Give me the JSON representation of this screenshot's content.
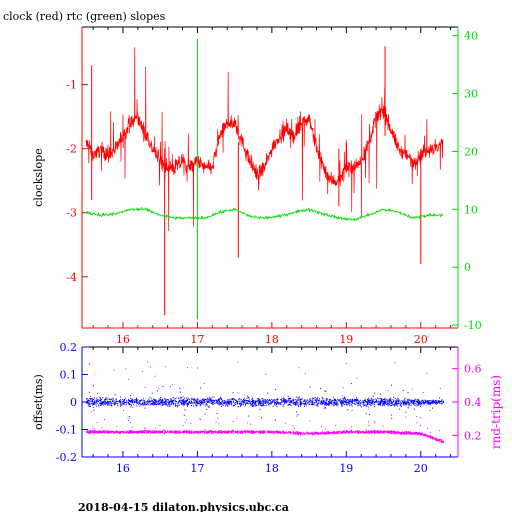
{
  "footer": "2018-04-15  dilaton.physics.ubc.ca",
  "colors": {
    "clock": "#ff0000",
    "rtc": "#00dd00",
    "offset": "#0000ff",
    "rnd_trip": "#ff00ff",
    "axis": "#000000"
  },
  "chart_data": [
    {
      "type": "line",
      "title": "clock (red) rtc (green) slopes",
      "ylabel": "clockslope",
      "y2label": "",
      "xlim": [
        15.45,
        20.5
      ],
      "ylim": [
        -4.8,
        -0.1
      ],
      "y2lim": [
        -10.5,
        41.5
      ],
      "x_ticks": [
        16,
        17,
        18,
        19,
        20
      ],
      "y_ticks": [
        -1,
        -2,
        -3,
        -4
      ],
      "y2_ticks": [
        40,
        30,
        20,
        10,
        0,
        -10
      ],
      "grid": false,
      "series": [
        {
          "axis": "left",
          "x": [
            15.5,
            15.6,
            15.7,
            15.8,
            15.9,
            16.0,
            16.1,
            16.2,
            16.3,
            16.4,
            16.5,
            16.6,
            16.7,
            16.8,
            16.9,
            17.0,
            17.1,
            17.2,
            17.3,
            17.4,
            17.5,
            17.6,
            17.7,
            17.8,
            17.9,
            18.0,
            18.1,
            18.2,
            18.3,
            18.4,
            18.5,
            18.6,
            18.7,
            18.8,
            18.9,
            19.0,
            19.1,
            19.2,
            19.3,
            19.4,
            19.5,
            19.6,
            19.7,
            19.8,
            19.9,
            20.0,
            20.1,
            20.2,
            20.3
          ],
          "values": [
            -1.9,
            -2.1,
            -2.0,
            -2.1,
            -2.0,
            -1.8,
            -1.6,
            -1.5,
            -1.8,
            -2.0,
            -2.2,
            -2.3,
            -2.3,
            -2.2,
            -2.3,
            -2.2,
            -2.3,
            -2.3,
            -1.8,
            -1.6,
            -1.6,
            -1.9,
            -2.2,
            -2.4,
            -2.3,
            -2.0,
            -1.8,
            -1.7,
            -1.8,
            -1.6,
            -1.5,
            -2.0,
            -2.3,
            -2.5,
            -2.5,
            -2.3,
            -2.3,
            -2.2,
            -1.9,
            -1.5,
            -1.4,
            -1.7,
            -2.0,
            -2.1,
            -2.2,
            -2.1,
            -2.0,
            -2.0,
            -1.9
          ]
        },
        {
          "axis": "right",
          "x": [
            15.5,
            15.7,
            15.9,
            16.1,
            16.3,
            16.5,
            16.7,
            16.9,
            17.1,
            17.3,
            17.5,
            17.7,
            17.9,
            18.1,
            18.3,
            18.5,
            18.7,
            18.9,
            19.1,
            19.3,
            19.5,
            19.7,
            19.9,
            20.1,
            20.3
          ],
          "values": [
            9.5,
            9.0,
            9.2,
            10.0,
            10.0,
            9.0,
            8.5,
            8.5,
            8.5,
            9.5,
            10.0,
            8.8,
            8.5,
            8.8,
            9.5,
            10.0,
            9.2,
            8.5,
            8.2,
            9.0,
            10.0,
            9.5,
            8.5,
            9.0,
            9.0
          ]
        }
      ]
    },
    {
      "type": "scatter",
      "title": "",
      "ylabel": "offset(ms)",
      "y2label": "rnd-trip(ms)",
      "xlim": [
        15.45,
        20.5
      ],
      "ylim": [
        -0.2,
        0.2
      ],
      "y2lim": [
        0.07,
        0.73
      ],
      "x_ticks": [
        16,
        17,
        18,
        19,
        20
      ],
      "y_ticks": [
        0.2,
        0.1,
        0,
        -0.1,
        -0.2
      ],
      "y2_ticks": [
        0.6,
        0.4,
        0.2
      ],
      "grid": false,
      "series": [
        {
          "axis": "left",
          "x": [
            15.5,
            16.0,
            16.5,
            17.0,
            17.5,
            18.0,
            18.5,
            19.0,
            19.5,
            20.0,
            20.3
          ],
          "values": [
            0.0,
            0.0,
            0.0,
            0.0,
            0.0,
            0.0,
            0.0,
            0.0,
            0.0,
            0.0,
            0.0
          ]
        },
        {
          "axis": "right",
          "x": [
            15.5,
            16.0,
            16.5,
            17.0,
            17.5,
            18.0,
            18.5,
            19.0,
            19.5,
            20.0,
            20.3
          ],
          "values": [
            0.22,
            0.22,
            0.22,
            0.22,
            0.22,
            0.22,
            0.21,
            0.22,
            0.22,
            0.21,
            0.16
          ]
        }
      ]
    }
  ]
}
